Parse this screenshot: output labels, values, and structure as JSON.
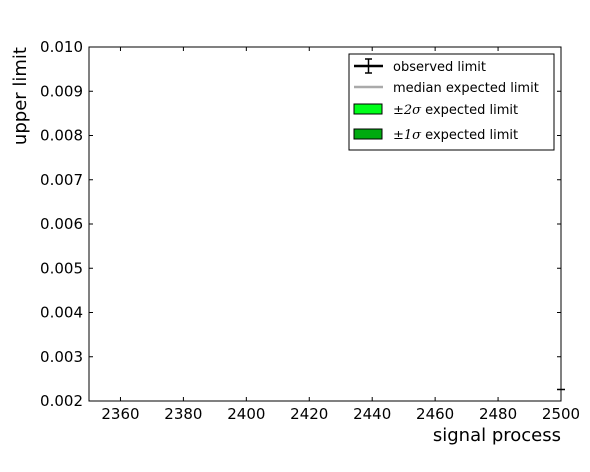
{
  "chart_data": {
    "type": "line",
    "title": "",
    "xlabel": "signal process",
    "ylabel": "upper limit",
    "xlim": [
      2350,
      2500
    ],
    "ylim": [
      0.002,
      0.01
    ],
    "x_ticks": [
      2360,
      2380,
      2400,
      2420,
      2440,
      2460,
      2480,
      2500
    ],
    "x_tick_labels": [
      "2360",
      "2380",
      "2400",
      "2420",
      "2440",
      "2460",
      "2480",
      "2500"
    ],
    "y_ticks": [
      0.002,
      0.003,
      0.004,
      0.005,
      0.006,
      0.007,
      0.008,
      0.009,
      0.01
    ],
    "y_tick_labels": [
      "0.002",
      "0.003",
      "0.004",
      "0.005",
      "0.006",
      "0.007",
      "0.008",
      "0.009",
      "0.010"
    ],
    "grid": false,
    "legend_position": "top-right",
    "legend": [
      {
        "label": "observed limit",
        "symbol": "errorbar",
        "color": "#000000"
      },
      {
        "label": "median expected limit",
        "symbol": "line",
        "color": "#aaaaaa"
      },
      {
        "label_pre": "±2",
        "label_sigma": "σ",
        "label_post": " expected limit",
        "symbol": "patch",
        "color": "#00ff1a"
      },
      {
        "label_pre": "±1",
        "label_sigma": "σ",
        "label_post": " expected limit",
        "symbol": "patch",
        "color": "#00aa10"
      }
    ],
    "series": [
      {
        "name": "observed limit",
        "x": [
          2500
        ],
        "y": [
          0.00226
        ]
      }
    ]
  }
}
